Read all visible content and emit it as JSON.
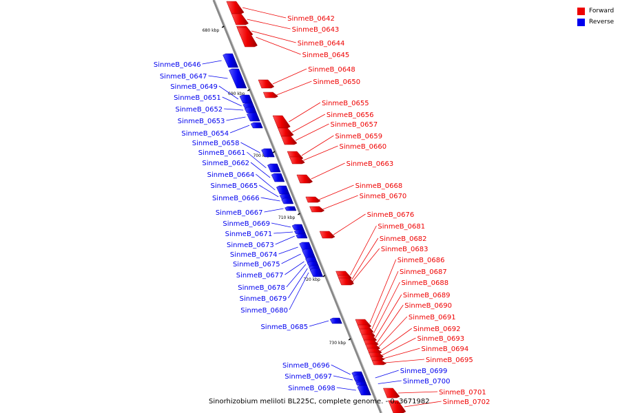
{
  "legend": {
    "forward_label": "Forward",
    "reverse_label": "Reverse",
    "forward_color": "#ee0000",
    "reverse_color": "#0000ee"
  },
  "caption": "Sinorhizobium meliloti BL225C, complete genome. - 0..3671982",
  "axis": {
    "tick_labels": [
      "680 kbp",
      "690 kbp",
      "700 kbp",
      "710 kbp",
      "720 kbp",
      "730 kbp"
    ]
  },
  "genes": {
    "forward": [
      "SinmeB_0642",
      "SinmeB_0643",
      "SinmeB_0644",
      "SinmeB_0645",
      "SinmeB_0648",
      "SinmeB_0650",
      "SinmeB_0655",
      "SinmeB_0656",
      "SinmeB_0657",
      "SinmeB_0659",
      "SinmeB_0660",
      "SinmeB_0663",
      "SinmeB_0668",
      "SinmeB_0670",
      "SinmeB_0676",
      "SinmeB_0681",
      "SinmeB_0682",
      "SinmeB_0683",
      "SinmeB_0686",
      "SinmeB_0687",
      "SinmeB_0688",
      "SinmeB_0689",
      "SinmeB_0690",
      "SinmeB_0691",
      "SinmeB_0692",
      "SinmeB_0693",
      "SinmeB_0694",
      "SinmeB_0695",
      "SinmeB_0701",
      "SinmeB_0702"
    ],
    "reverse": [
      "SinmeB_0646",
      "SinmeB_0647",
      "SinmeB_0649",
      "SinmeB_0651",
      "SinmeB_0652",
      "SinmeB_0653",
      "SinmeB_0654",
      "SinmeB_0658",
      "SinmeB_0661",
      "SinmeB_0662",
      "SinmeB_0664",
      "SinmeB_0665",
      "SinmeB_0666",
      "SinmeB_0667",
      "SinmeB_0669",
      "SinmeB_0671",
      "SinmeB_0673",
      "SinmeB_0674",
      "SinmeB_0675",
      "SinmeB_0677",
      "SinmeB_0678",
      "SinmeB_0679",
      "SinmeB_0680",
      "SinmeB_0685",
      "SinmeB_0696",
      "SinmeB_0697",
      "SinmeB_0698",
      "SinmeB_0699",
      "SinmeB_0700"
    ]
  }
}
